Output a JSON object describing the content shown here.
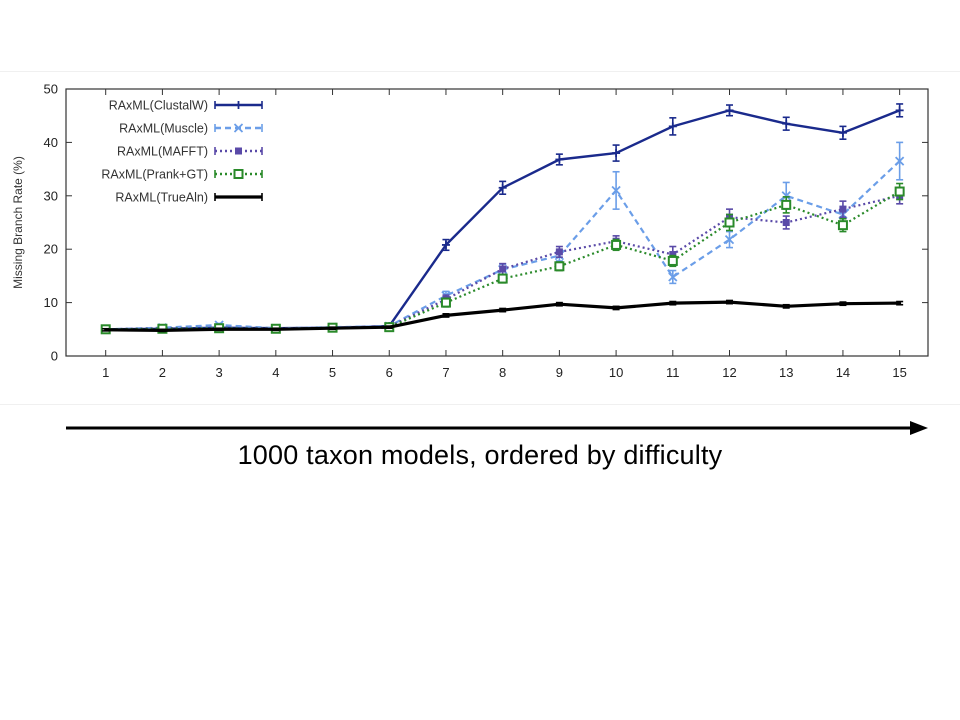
{
  "caption": "1000 taxon models, ordered by difficulty",
  "chart_data": {
    "type": "line",
    "title": "",
    "xlabel": "",
    "ylabel": "Missing Branch Rate (%)",
    "x": [
      1,
      2,
      3,
      4,
      5,
      6,
      7,
      8,
      9,
      10,
      11,
      12,
      13,
      14,
      15
    ],
    "xlim": [
      0.3,
      15.5
    ],
    "ylim": [
      0,
      50
    ],
    "yticks": [
      0,
      10,
      20,
      30,
      40,
      50
    ],
    "legend_position": "top-left",
    "series": [
      {
        "name": "RAxML(ClustalW)",
        "color": "#1a2a8c",
        "dash": "solid",
        "marker": "plus",
        "values": [
          5.0,
          5.1,
          5.3,
          5.2,
          5.3,
          5.6,
          20.8,
          31.5,
          36.8,
          38.0,
          43.0,
          46.0,
          43.5,
          41.8,
          46.0
        ],
        "errors": [
          0.3,
          0.3,
          0.3,
          0.3,
          0.3,
          0.4,
          1.0,
          1.2,
          1.0,
          1.5,
          1.6,
          1.0,
          1.2,
          1.2,
          1.2
        ]
      },
      {
        "name": "RAxML(Muscle)",
        "color": "#6b9ee8",
        "dash": "dashed",
        "marker": "cross",
        "values": [
          5.0,
          5.3,
          5.8,
          5.2,
          5.4,
          5.6,
          11.3,
          16.2,
          18.8,
          31.0,
          14.8,
          21.8,
          30.0,
          26.5,
          36.5
        ],
        "errors": [
          0.3,
          0.3,
          0.3,
          0.3,
          0.3,
          0.4,
          0.8,
          1.0,
          1.0,
          3.5,
          1.2,
          1.5,
          2.5,
          1.5,
          3.5
        ]
      },
      {
        "name": "RAxML(MAFFT)",
        "color": "#5a4aa8",
        "dash": "dotted",
        "marker": "square",
        "values": [
          5.0,
          5.2,
          5.3,
          5.2,
          5.3,
          5.5,
          10.6,
          16.3,
          19.5,
          21.5,
          19.0,
          26.0,
          25.0,
          27.5,
          30.0
        ],
        "errors": [
          0.3,
          0.3,
          0.3,
          0.3,
          0.3,
          0.4,
          0.8,
          1.0,
          1.0,
          1.0,
          1.5,
          1.5,
          1.2,
          1.5,
          1.5
        ]
      },
      {
        "name": "RAxML(Prank+GT)",
        "color": "#2a8a2a",
        "dash": "dotted",
        "marker": "square-open",
        "values": [
          5.0,
          5.1,
          5.2,
          5.1,
          5.3,
          5.4,
          10.0,
          14.5,
          16.8,
          20.8,
          17.8,
          25.0,
          28.3,
          24.5,
          30.8
        ],
        "errors": [
          0.3,
          0.3,
          0.3,
          0.3,
          0.3,
          0.4,
          0.8,
          0.8,
          0.8,
          1.0,
          1.0,
          1.5,
          1.5,
          1.2,
          1.5
        ]
      },
      {
        "name": "RAxML(TrueAln)",
        "color": "#000000",
        "dash": "solid",
        "marker": "none",
        "values": [
          4.9,
          4.8,
          5.0,
          5.0,
          5.2,
          5.4,
          7.6,
          8.6,
          9.7,
          9.0,
          9.9,
          10.1,
          9.3,
          9.8,
          9.9
        ],
        "errors": [
          0.2,
          0.2,
          0.2,
          0.2,
          0.2,
          0.2,
          0.3,
          0.3,
          0.3,
          0.3,
          0.3,
          0.3,
          0.3,
          0.3,
          0.3
        ]
      }
    ]
  }
}
